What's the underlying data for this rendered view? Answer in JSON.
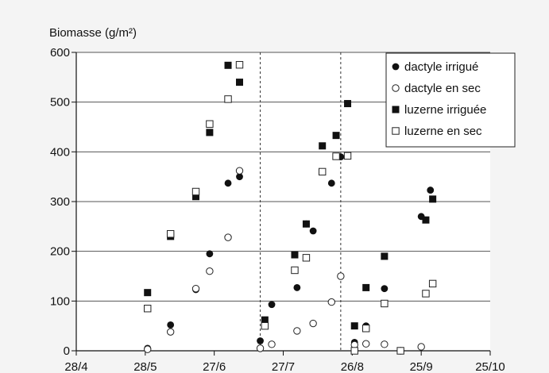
{
  "chart_data": {
    "type": "scatter",
    "ylabel": "Biomasse (g/m²)",
    "ylim": [
      0,
      600
    ],
    "yticks": [
      0,
      100,
      200,
      300,
      400,
      500,
      600
    ],
    "xlim": [
      "2000-04-28",
      "2000-10-25"
    ],
    "xticks": [
      "28/4",
      "28/5",
      "27/6",
      "27/7",
      "26/8",
      "25/9",
      "25/10"
    ],
    "xtick_dates": [
      "2000-04-28",
      "2000-05-28",
      "2000-06-27",
      "2000-07-27",
      "2000-08-26",
      "2000-09-25",
      "2000-10-25"
    ],
    "vlines": [
      "2000-07-17",
      "2000-08-21"
    ],
    "grid": "horizontal",
    "legend_position": "top-right",
    "series": [
      {
        "name": "dactyle irrigué",
        "marker": "filled-circle",
        "points": [
          [
            "2000-05-29",
            5
          ],
          [
            "2000-06-08",
            52
          ],
          [
            "2000-06-19",
            123
          ],
          [
            "2000-06-25",
            195
          ],
          [
            "2000-07-03",
            337
          ],
          [
            "2000-07-08",
            350
          ],
          [
            "2000-07-17",
            20
          ],
          [
            "2000-07-22",
            93
          ],
          [
            "2000-08-02",
            127
          ],
          [
            "2000-08-06",
            255
          ],
          [
            "2000-08-09",
            241
          ],
          [
            "2000-08-17",
            337
          ],
          [
            "2000-08-21",
            390
          ],
          [
            "2000-08-27",
            17
          ],
          [
            "2000-09-01",
            50
          ],
          [
            "2000-09-09",
            125
          ],
          [
            "2000-09-25",
            270
          ],
          [
            "2000-09-29",
            323
          ]
        ]
      },
      {
        "name": "dactyle en sec",
        "marker": "open-circle",
        "points": [
          [
            "2000-05-29",
            3
          ],
          [
            "2000-06-08",
            38
          ],
          [
            "2000-06-19",
            125
          ],
          [
            "2000-06-25",
            160
          ],
          [
            "2000-07-03",
            228
          ],
          [
            "2000-07-08",
            362
          ],
          [
            "2000-07-17",
            5
          ],
          [
            "2000-07-22",
            13
          ],
          [
            "2000-08-02",
            40
          ],
          [
            "2000-08-09",
            55
          ],
          [
            "2000-08-17",
            98
          ],
          [
            "2000-08-21",
            150
          ],
          [
            "2000-08-27",
            12
          ],
          [
            "2000-09-01",
            14
          ],
          [
            "2000-09-09",
            13
          ],
          [
            "2000-09-16",
            0
          ],
          [
            "2000-09-25",
            8
          ]
        ]
      },
      {
        "name": "luzerne irriguée",
        "marker": "filled-square",
        "points": [
          [
            "2000-05-29",
            117
          ],
          [
            "2000-06-08",
            230
          ],
          [
            "2000-06-19",
            310
          ],
          [
            "2000-06-25",
            439
          ],
          [
            "2000-07-03",
            574
          ],
          [
            "2000-07-08",
            540
          ],
          [
            "2000-07-19",
            62
          ],
          [
            "2000-08-01",
            193
          ],
          [
            "2000-08-06",
            255
          ],
          [
            "2000-08-13",
            412
          ],
          [
            "2000-08-19",
            433
          ],
          [
            "2000-08-24",
            497
          ],
          [
            "2000-08-27",
            50
          ],
          [
            "2000-09-01",
            127
          ],
          [
            "2000-09-09",
            190
          ],
          [
            "2000-09-27",
            263
          ],
          [
            "2000-09-30",
            305
          ]
        ]
      },
      {
        "name": "luzerne en sec",
        "marker": "open-square",
        "points": [
          [
            "2000-05-29",
            85
          ],
          [
            "2000-06-08",
            235
          ],
          [
            "2000-06-19",
            320
          ],
          [
            "2000-06-25",
            456
          ],
          [
            "2000-07-03",
            506
          ],
          [
            "2000-07-08",
            575
          ],
          [
            "2000-07-19",
            50
          ],
          [
            "2000-08-01",
            162
          ],
          [
            "2000-08-06",
            187
          ],
          [
            "2000-08-13",
            360
          ],
          [
            "2000-08-19",
            391
          ],
          [
            "2000-08-24",
            392
          ],
          [
            "2000-08-27",
            0
          ],
          [
            "2000-09-01",
            45
          ],
          [
            "2000-09-09",
            95
          ],
          [
            "2000-09-16",
            0
          ],
          [
            "2000-09-27",
            115
          ],
          [
            "2000-09-30",
            135
          ]
        ]
      }
    ]
  }
}
